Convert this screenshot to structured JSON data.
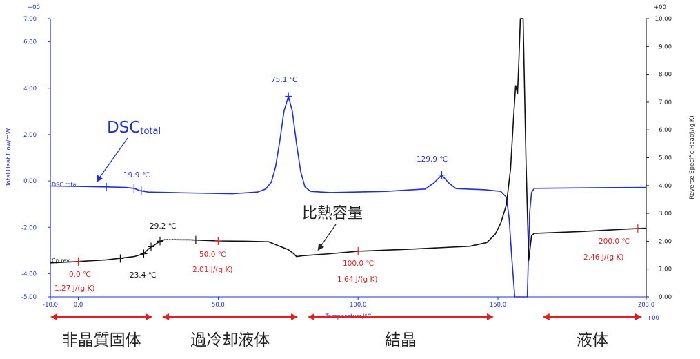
{
  "chart_data": {
    "type": "line",
    "exponent_left": "+00",
    "exponent_right": "+00",
    "exponent_x": "+00",
    "xlabel": "Temperature/°C",
    "ylabel_left": "Total Heat Flow/mW",
    "ylabel_right": "Reverse Specific Heat/J/(g K)",
    "xlim": [
      -10,
      203
    ],
    "ylim_left": [
      -5,
      7
    ],
    "ylim_right": [
      0,
      10
    ],
    "x_ticks": [
      "-10.0",
      "0.0",
      "50.0",
      "100.0",
      "150.0",
      "203.0"
    ],
    "y_left_ticks": [
      "7.00",
      "6.00",
      "4.00",
      "2.00",
      "0.00",
      "-2.00",
      "-4.00",
      "-5.00"
    ],
    "y_right_ticks": [
      "10.00",
      "9.00",
      "8.00",
      "7.00",
      "6.00",
      "5.00",
      "4.00",
      "3.00",
      "2.00",
      "1.00",
      "0.00"
    ],
    "series": [
      {
        "name": "DSC total",
        "axis": "left",
        "color": "#1f2fd8",
        "points": [
          [
            -10,
            -0.22
          ],
          [
            0,
            -0.24
          ],
          [
            10,
            -0.26
          ],
          [
            17,
            -0.28
          ],
          [
            19.9,
            -0.32
          ],
          [
            22,
            -0.42
          ],
          [
            25,
            -0.48
          ],
          [
            40,
            -0.52
          ],
          [
            55,
            -0.55
          ],
          [
            64,
            -0.48
          ],
          [
            67,
            -0.35
          ],
          [
            69,
            -0.05
          ],
          [
            70.5,
            0.6
          ],
          [
            72,
            1.7
          ],
          [
            73.5,
            3.0
          ],
          [
            75.1,
            3.65
          ],
          [
            76.5,
            3.0
          ],
          [
            78,
            1.6
          ],
          [
            79.5,
            0.4
          ],
          [
            81,
            -0.25
          ],
          [
            83,
            -0.45
          ],
          [
            90,
            -0.5
          ],
          [
            110,
            -0.45
          ],
          [
            124,
            -0.35
          ],
          [
            127,
            -0.1
          ],
          [
            129.9,
            0.25
          ],
          [
            132.5,
            -0.1
          ],
          [
            135,
            -0.33
          ],
          [
            145,
            -0.38
          ],
          [
            151,
            -0.45
          ],
          [
            153,
            -0.7
          ],
          [
            154,
            -1.6
          ],
          [
            155,
            -3.4
          ],
          [
            156,
            -5.0
          ],
          [
            160.5,
            -5.0
          ],
          [
            161.3,
            -1.4
          ],
          [
            162,
            -0.5
          ],
          [
            163,
            -0.32
          ],
          [
            180,
            -0.3
          ],
          [
            203,
            -0.28
          ]
        ]
      },
      {
        "name": "Cp rev",
        "axis": "right",
        "color": "#111111",
        "points": [
          [
            -10,
            1.22
          ],
          [
            0,
            1.27
          ],
          [
            10,
            1.33
          ],
          [
            20,
            1.45
          ],
          [
            23.4,
            1.55
          ],
          [
            25,
            1.72
          ],
          [
            27,
            1.85
          ],
          [
            29.2,
            2.0
          ],
          [
            31,
            2.06
          ],
          [
            40,
            2.05
          ],
          [
            50,
            2.01
          ],
          [
            60,
            2.0
          ],
          [
            68,
            1.98
          ],
          [
            72,
            1.82
          ],
          [
            75,
            1.7
          ],
          [
            77,
            1.55
          ],
          [
            78,
            1.45
          ],
          [
            80,
            1.48
          ],
          [
            90,
            1.55
          ],
          [
            100,
            1.64
          ],
          [
            120,
            1.72
          ],
          [
            140,
            1.82
          ],
          [
            146,
            1.95
          ],
          [
            149,
            2.25
          ],
          [
            151,
            2.65
          ],
          [
            153,
            3.3
          ],
          [
            154.5,
            4.6
          ],
          [
            155.5,
            6.3
          ],
          [
            156.3,
            7.6
          ],
          [
            157,
            7.3
          ],
          [
            157.5,
            8.5
          ],
          [
            158,
            10.0
          ],
          [
            159,
            10.0
          ],
          [
            160,
            5.0
          ],
          [
            161,
            1.3
          ],
          [
            162,
            2.2
          ],
          [
            163,
            2.28
          ],
          [
            180,
            2.35
          ],
          [
            200,
            2.46
          ],
          [
            203,
            2.47
          ]
        ]
      }
    ],
    "annotations": [
      {
        "text": "DSC",
        "sub": "total",
        "color": "#1f2fd8"
      },
      {
        "text": "DSC total",
        "color": "#1f2fd8"
      },
      {
        "text": "19.9 ℃",
        "color": "#1f2fd8"
      },
      {
        "text": "75.1 ℃",
        "color": "#1f2fd8"
      },
      {
        "text": "129.9 ℃",
        "color": "#1f2fd8"
      },
      {
        "text": "比熱容量",
        "color": "#222222"
      },
      {
        "text": "Cp rev",
        "color": "#111111"
      },
      {
        "text": "29.2 ℃",
        "color": "#111111"
      },
      {
        "text": "23.4 ℃",
        "color": "#111111"
      },
      {
        "text": "0.0 ℃",
        "color": "#e02020"
      },
      {
        "text": "1.27 J/(g K)",
        "color": "#e02020"
      },
      {
        "text": "50.0 ℃",
        "color": "#e02020"
      },
      {
        "text": "2.01 J/(g K)",
        "color": "#e02020"
      },
      {
        "text": "100.0 ℃",
        "color": "#e02020"
      },
      {
        "text": "1.64 J/(g K)",
        "color": "#e02020"
      },
      {
        "text": "200.0 ℃",
        "color": "#e02020"
      },
      {
        "text": "2.46 J/(g K)",
        "color": "#e02020"
      }
    ],
    "markers_blue": [
      [
        10,
        -0.26
      ],
      [
        19.9,
        -0.32
      ],
      [
        22.5,
        -0.42
      ],
      [
        75.1,
        3.65
      ],
      [
        129.9,
        0.25
      ]
    ],
    "markers_black": [
      [
        15,
        1.38
      ],
      [
        23.4,
        1.55
      ],
      [
        26,
        1.8
      ],
      [
        29.2,
        2.0
      ],
      [
        42,
        2.04
      ]
    ],
    "markers_red": [
      [
        0,
        1.27
      ],
      [
        50,
        2.01
      ],
      [
        100,
        1.64
      ],
      [
        200,
        2.46
      ]
    ],
    "phases": [
      {
        "label": "非晶質固体",
        "range": [
          -10,
          28
        ]
      },
      {
        "label": "過冷却液体",
        "range": [
          28,
          80
        ]
      },
      {
        "label": "結晶",
        "range": [
          80,
          150
        ]
      },
      {
        "label": "液体",
        "range": [
          164,
          203
        ]
      }
    ],
    "phase_arrow_color": "#e02020"
  }
}
